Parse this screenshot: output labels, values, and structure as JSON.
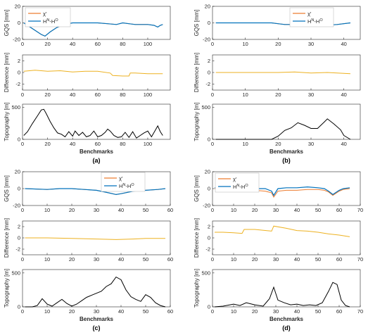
{
  "chart_data": [
    {
      "panel_label": "(a)",
      "type": "line",
      "xlabel": "Benchmarks",
      "xticks": [
        0,
        20,
        40,
        60,
        80,
        100
      ],
      "xlim": [
        0,
        118
      ],
      "legend": {
        "placement": "top-left",
        "entries": [
          "χ′",
          "H^N-H^O"
        ]
      },
      "subplots": [
        {
          "ylabel": "GQS [mm]",
          "ylim": [
            -20,
            20
          ],
          "yticks": [
            -20,
            0,
            20
          ],
          "series": [
            {
              "name": "χ′",
              "color": "#ED7D31",
              "x": [
                1,
                5,
                10,
                15,
                18,
                22,
                27,
                33,
                40,
                50,
                60,
                68,
                75,
                80,
                85,
                90,
                95,
                100,
                105,
                108,
                110,
                112
              ],
              "y": [
                0,
                -4,
                -9,
                -14,
                -16,
                -11,
                -6,
                -2,
                0,
                0,
                0,
                -1,
                -2,
                0,
                -1,
                -2,
                -2,
                -2,
                -3,
                -5,
                -3,
                -2
              ]
            },
            {
              "name": "H^N-H^O",
              "color": "#0072BD",
              "x": [
                1,
                5,
                10,
                15,
                18,
                22,
                27,
                33,
                40,
                50,
                60,
                68,
                75,
                80,
                85,
                90,
                95,
                100,
                105,
                108,
                110,
                112
              ],
              "y": [
                0,
                -4,
                -9,
                -14,
                -16,
                -11,
                -6,
                -2,
                0,
                0,
                0,
                -1,
                -2,
                0,
                -1,
                -2,
                -2,
                -2,
                -3,
                -5,
                -3,
                -2
              ]
            }
          ]
        },
        {
          "ylabel": "Difference [mm]",
          "ylim": [
            -3,
            3
          ],
          "yticks": [
            -2,
            0,
            2
          ],
          "series": [
            {
              "color": "#EDB120",
              "x": [
                1,
                10,
                20,
                30,
                40,
                50,
                60,
                70,
                72,
                80,
                85,
                86,
                90,
                100,
                112
              ],
              "y": [
                0.2,
                0.4,
                0.2,
                0.3,
                0.1,
                0.2,
                0.2,
                -0.1,
                -0.5,
                -0.6,
                -0.6,
                -0.1,
                -0.1,
                -0.2,
                -0.2
              ]
            }
          ]
        },
        {
          "ylabel": "Topography [m]",
          "ylim": [
            0,
            550
          ],
          "yticks": [
            0,
            500
          ],
          "series": [
            {
              "color": "#000000",
              "x": [
                1,
                4,
                8,
                12,
                15,
                17,
                19,
                22,
                25,
                28,
                31,
                34,
                37,
                40,
                42,
                45,
                48,
                51,
                54,
                57,
                60,
                63,
                66,
                68,
                70,
                73,
                76,
                79,
                82,
                85,
                88,
                91,
                94,
                97,
                100,
                103,
                106,
                108,
                110,
                112
              ],
              "y": [
                60,
                120,
                250,
                370,
                460,
                470,
                400,
                280,
                180,
                100,
                80,
                40,
                120,
                50,
                130,
                60,
                110,
                40,
                60,
                130,
                40,
                60,
                110,
                160,
                130,
                60,
                30,
                40,
                110,
                30,
                120,
                20,
                60,
                100,
                130,
                40,
                140,
                210,
                120,
                60
              ]
            }
          ]
        }
      ]
    },
    {
      "panel_label": "(b)",
      "type": "line",
      "xlabel": "Benchmarks",
      "xticks": [
        0,
        10,
        20,
        30,
        40
      ],
      "xlim": [
        0,
        45
      ],
      "legend": {
        "placement": "top-right",
        "entries": [
          "χ′",
          "H^N-H^O"
        ]
      },
      "subplots": [
        {
          "ylabel": "GQS [mm]",
          "ylim": [
            -20,
            20
          ],
          "yticks": [
            -20,
            0,
            20
          ],
          "series": [
            {
              "name": "χ′",
              "color": "#ED7D31",
              "x": [
                1,
                10,
                18,
                20,
                22,
                26,
                30,
                32,
                34,
                38,
                42
              ],
              "y": [
                0,
                0,
                0,
                -1,
                -2,
                -2,
                -2,
                -2,
                -3,
                -2,
                0
              ]
            },
            {
              "name": "H^N-H^O",
              "color": "#0072BD",
              "x": [
                1,
                10,
                18,
                20,
                22,
                26,
                30,
                32,
                34,
                38,
                42
              ],
              "y": [
                0,
                0,
                0,
                -1,
                -2,
                -2,
                -2,
                -2,
                -3,
                -2,
                0
              ]
            }
          ]
        },
        {
          "ylabel": "Difference [mm]",
          "ylim": [
            -3,
            3
          ],
          "yticks": [
            -2,
            0,
            2
          ],
          "series": [
            {
              "color": "#EDB120",
              "x": [
                1,
                10,
                20,
                25,
                30,
                35,
                42
              ],
              "y": [
                0,
                0,
                0,
                0.1,
                -0.1,
                0,
                -0.2
              ]
            }
          ]
        },
        {
          "ylabel": "Topography [m]",
          "ylim": [
            0,
            550
          ],
          "yticks": [
            0,
            500
          ],
          "series": [
            {
              "color": "#000000",
              "x": [
                1,
                10,
                18,
                20,
                22,
                24,
                26,
                28,
                30,
                32,
                34,
                35,
                37,
                39,
                40,
                42
              ],
              "y": [
                0,
                0,
                0,
                50,
                140,
                180,
                260,
                220,
                170,
                170,
                270,
                320,
                240,
                150,
                60,
                0
              ]
            }
          ]
        }
      ]
    },
    {
      "panel_label": "(c)",
      "type": "line",
      "xlabel": "Benchmarks",
      "xticks": [
        0,
        10,
        20,
        30,
        40,
        50,
        60
      ],
      "xlim": [
        0,
        60
      ],
      "legend": {
        "placement": "top-right",
        "entries": [
          "χ′",
          "H^N-H^O"
        ]
      },
      "subplots": [
        {
          "ylabel": "GQS [mm]",
          "ylim": [
            -20,
            20
          ],
          "yticks": [
            -20,
            0,
            20
          ],
          "series": [
            {
              "name": "χ′",
              "color": "#ED7D31",
              "x": [
                1,
                10,
                15,
                20,
                25,
                30,
                35,
                38,
                40,
                45,
                50,
                55,
                58
              ],
              "y": [
                0,
                -1,
                0,
                0,
                -1,
                -2,
                -5,
                -7,
                -6,
                -3,
                -2,
                -1,
                0
              ]
            },
            {
              "name": "H^N-H^O",
              "color": "#0072BD",
              "x": [
                1,
                10,
                15,
                20,
                25,
                30,
                35,
                38,
                40,
                45,
                50,
                55,
                58
              ],
              "y": [
                0,
                -1,
                0,
                0,
                -1,
                -2,
                -5,
                -7,
                -6,
                -3,
                -2,
                -1,
                0
              ]
            }
          ]
        },
        {
          "ylabel": "Difference [mm]",
          "ylim": [
            -3,
            3
          ],
          "yticks": [
            -2,
            0,
            2
          ],
          "series": [
            {
              "color": "#EDB120",
              "x": [
                1,
                10,
                20,
                30,
                38,
                45,
                50,
                58
              ],
              "y": [
                0,
                0,
                -0.1,
                -0.2,
                -0.3,
                -0.2,
                -0.1,
                -0.1
              ]
            }
          ]
        },
        {
          "ylabel": "Topography [m]",
          "ylim": [
            0,
            550
          ],
          "yticks": [
            0,
            500
          ],
          "series": [
            {
              "color": "#000000",
              "x": [
                1,
                4,
                6,
                8,
                10,
                12,
                14,
                16,
                18,
                20,
                22,
                24,
                26,
                28,
                30,
                32,
                34,
                36,
                38,
                40,
                42,
                44,
                46,
                48,
                50,
                52,
                54,
                56,
                58
              ],
              "y": [
                0,
                0,
                20,
                120,
                40,
                10,
                60,
                110,
                50,
                10,
                40,
                90,
                140,
                170,
                200,
                230,
                300,
                340,
                440,
                400,
                250,
                150,
                110,
                80,
                180,
                140,
                60,
                20,
                0
              ]
            }
          ]
        }
      ]
    },
    {
      "panel_label": "(d)",
      "type": "line",
      "xlabel": "Benchmarks",
      "xticks": [
        0,
        10,
        20,
        30,
        40,
        50,
        60,
        70
      ],
      "xlim": [
        0,
        70
      ],
      "legend": {
        "placement": "top-left",
        "entries": [
          "χ′",
          "H^N-H^O"
        ]
      },
      "subplots": [
        {
          "ylabel": "GQS [mm]",
          "ylim": [
            -20,
            20
          ],
          "yticks": [
            -20,
            0,
            20
          ],
          "series": [
            {
              "name": "χ′",
              "color": "#ED7D31",
              "x": [
                1,
                10,
                15,
                20,
                25,
                28,
                29,
                31,
                35,
                40,
                45,
                50,
                53,
                55,
                57,
                60,
                62,
                65
              ],
              "y": [
                0,
                -1,
                -2,
                -2,
                -3,
                -5,
                -10,
                -3,
                -2,
                -2,
                -1,
                -1,
                -2,
                -4,
                -8,
                -3,
                -1,
                0
              ]
            },
            {
              "name": "H^N-H^O",
              "color": "#0072BD",
              "x": [
                1,
                10,
                15,
                20,
                25,
                28,
                29,
                31,
                35,
                40,
                45,
                50,
                53,
                55,
                57,
                60,
                62,
                65
              ],
              "y": [
                1,
                0,
                0,
                0,
                0,
                -3,
                -8,
                0,
                1,
                1,
                2,
                1,
                0,
                -3,
                -7,
                -2,
                0,
                1
              ]
            }
          ]
        },
        {
          "ylabel": "Difference [mm]",
          "ylim": [
            -3,
            3
          ],
          "yticks": [
            -2,
            0,
            2
          ],
          "series": [
            {
              "color": "#EDB120",
              "x": [
                1,
                5,
                10,
                14,
                15,
                20,
                28,
                29,
                35,
                40,
                45,
                50,
                55,
                60,
                65
              ],
              "y": [
                1,
                1,
                0.9,
                0.8,
                1.5,
                1.5,
                1.2,
                2.1,
                1.7,
                1.3,
                1.2,
                1.0,
                0.7,
                0.5,
                0.2
              ]
            }
          ]
        },
        {
          "ylabel": "Topography [m]",
          "ylim": [
            0,
            550
          ],
          "yticks": [
            0,
            500
          ],
          "series": [
            {
              "color": "#000000",
              "x": [
                1,
                5,
                10,
                13,
                16,
                20,
                24,
                27,
                29,
                31,
                34,
                37,
                40,
                43,
                46,
                49,
                52,
                55,
                57,
                59,
                61,
                63,
                65
              ],
              "y": [
                0,
                10,
                40,
                20,
                60,
                30,
                10,
                120,
                290,
                100,
                60,
                30,
                40,
                20,
                30,
                20,
                60,
                230,
                360,
                330,
                100,
                20,
                0
              ]
            }
          ]
        }
      ]
    }
  ]
}
